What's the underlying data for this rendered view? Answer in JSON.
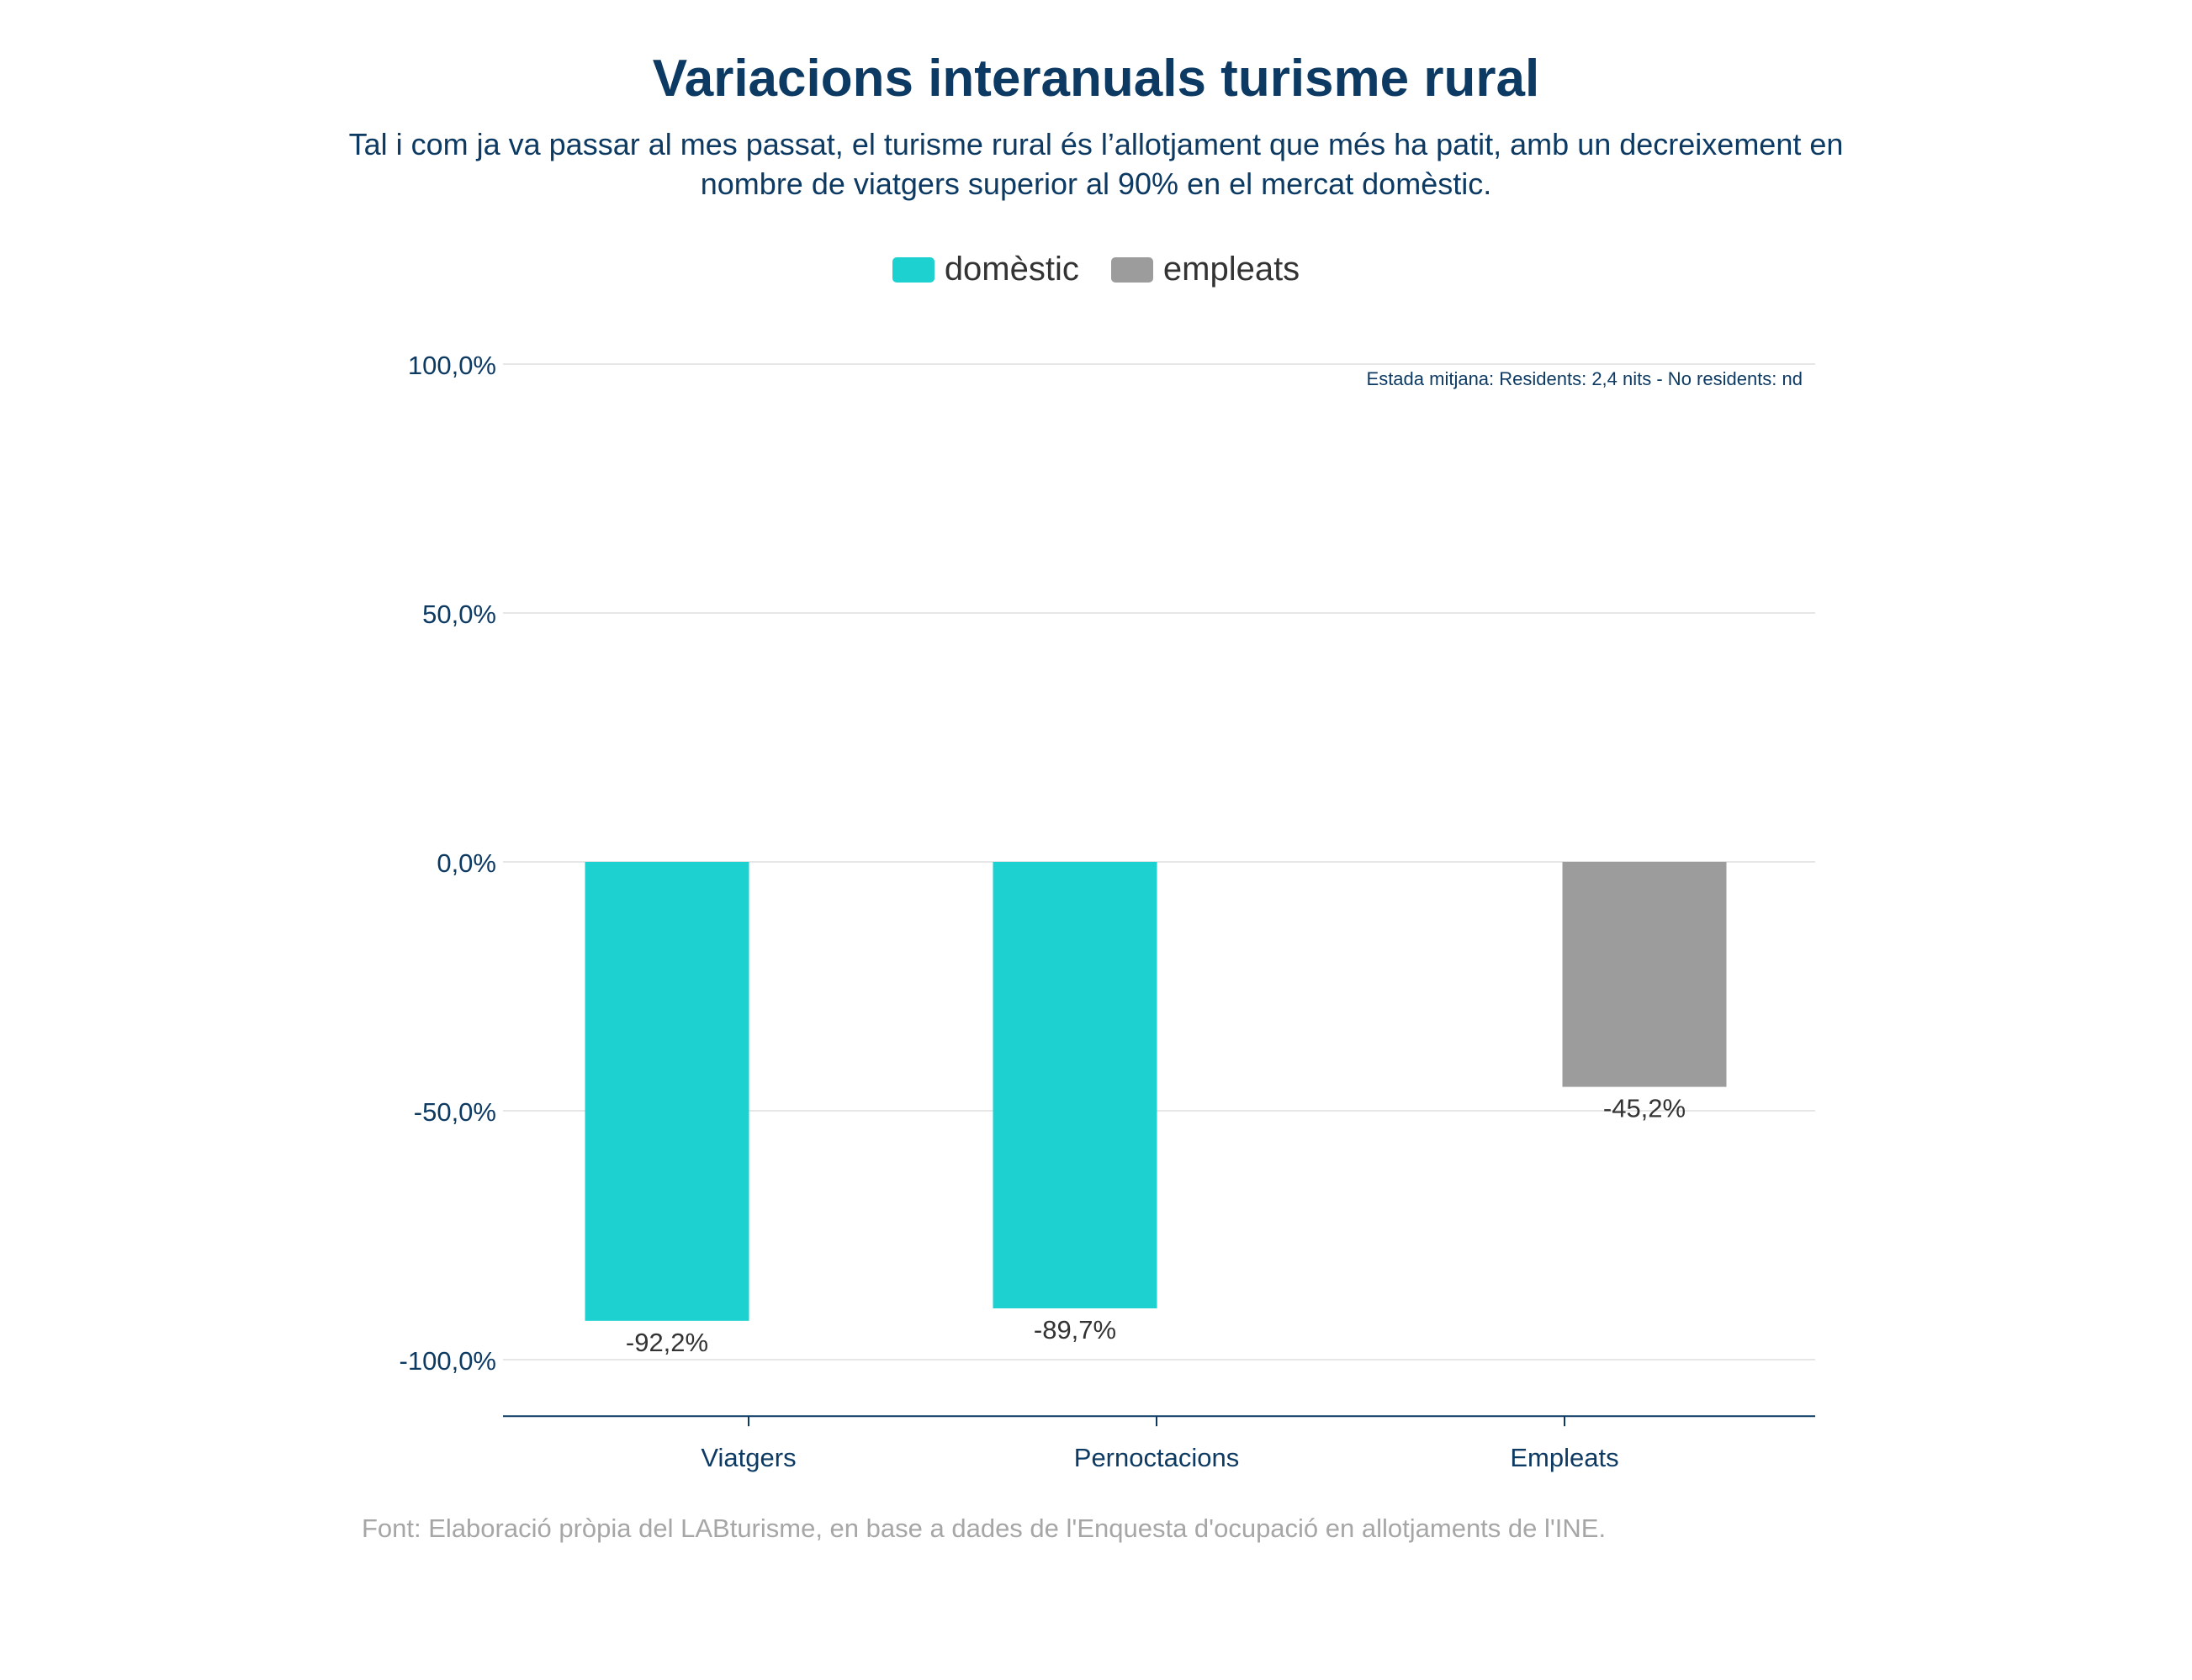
{
  "title": "Variacions interanuals turisme rural",
  "subtitle": "Tal i com ja va passar al mes passat, el turisme rural és l’allotjament que més ha patit, amb un decreixement en nombre de viatgers superior al 90% en el mercat domèstic.",
  "source": "Font: Elaboració pròpia del LABturisme, en base a dades de l'Enquesta d'ocupació en allotjaments de l'INE.",
  "annotation": "Estada mitjana: Residents: 2,4 nits - No residents: nd",
  "colors": {
    "domestic": "#1dd1d1",
    "employees": "#9c9c9c",
    "text": "#0d3a63"
  },
  "chart_data": {
    "type": "bar",
    "categories": [
      "Viatgers",
      "Pernoctacions",
      "Empleats"
    ],
    "series": [
      {
        "name": "domèstic",
        "values": [
          -92.2,
          -89.7,
          null
        ]
      },
      {
        "name": "empleats",
        "values": [
          null,
          null,
          -45.2
        ]
      }
    ],
    "data_labels": [
      "-92,2%",
      "-89,7%",
      "-45,2%"
    ],
    "y_ticks": [
      100,
      50,
      0,
      -50,
      -100
    ],
    "y_tick_labels": [
      "100,0%",
      "50,0%",
      "0,0%",
      "-50,0%",
      "-100,0%"
    ],
    "ylim": [
      -110,
      100
    ],
    "grid": true,
    "legend_position": "top-center"
  }
}
